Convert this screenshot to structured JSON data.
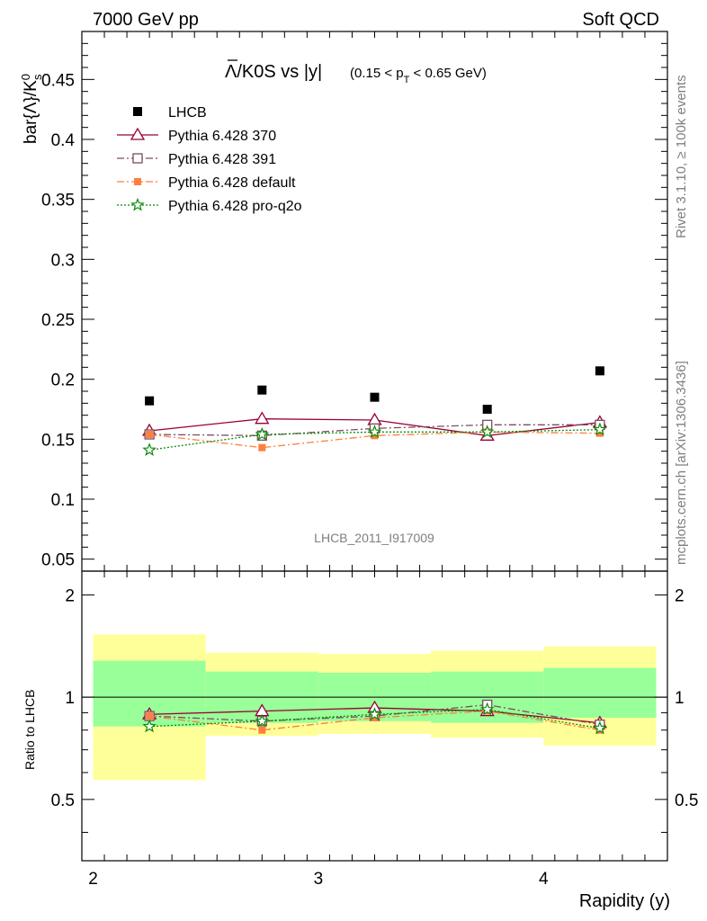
{
  "header": {
    "left": "7000 GeV pp",
    "right": "Soft QCD"
  },
  "side_labels": {
    "rivet": "Rivet 3.1.10, ≥ 100k events",
    "mcplots": "mcplots.cern.ch [arXiv:1306.3436]"
  },
  "watermark": "LHCB_2011_I917009",
  "title": {
    "main": "Λ/K0S vs |y|",
    "cut_prefix": "(0.15 < p",
    "cut_sub": "T",
    "cut_suffix": " < 0.65 GeV)"
  },
  "colors": {
    "lhcb": "#000000",
    "p370": "#990033",
    "p391": "#7a4d5e",
    "pdefault": "#ff7f3f",
    "pq2o": "#0a8c0a",
    "band_inner": "#99ff99",
    "band_outer": "#ffff99"
  },
  "chart_data": [
    {
      "type": "scatter",
      "ylabel_main": "bar{Λ}/K",
      "ylabel_sup": "0",
      "ylabel_sub": "s",
      "ylim": [
        0.04,
        0.49
      ],
      "yticks": [
        0.05,
        0.1,
        0.15,
        0.2,
        0.25,
        0.3,
        0.35,
        0.4,
        0.45
      ],
      "ytick_labels": [
        "0.05",
        "0.1",
        "0.15",
        "0.2",
        "0.25",
        "0.3",
        "0.35",
        "0.4",
        "0.45"
      ],
      "xlim": [
        1.95,
        4.55
      ],
      "x": [
        2.25,
        2.75,
        3.25,
        3.75,
        4.25
      ],
      "legend_position": "top-left",
      "series": [
        {
          "key": "lhcb",
          "name": "LHCB",
          "marker": "square",
          "values": [
            0.182,
            0.191,
            0.185,
            0.175,
            0.207
          ]
        },
        {
          "key": "p370",
          "name": "Pythia 6.428 370",
          "marker": "triangle",
          "line": "solid",
          "values": [
            0.157,
            0.167,
            0.166,
            0.153,
            0.164
          ]
        },
        {
          "key": "p391",
          "name": "Pythia 6.428 391",
          "marker": "open-square",
          "line": "dashdot",
          "values": [
            0.154,
            0.153,
            0.159,
            0.162,
            0.162
          ]
        },
        {
          "key": "pdefault",
          "name": "Pythia 6.428 default",
          "marker": "filled-square-small",
          "line": "dashdot",
          "values": [
            0.154,
            0.143,
            0.153,
            0.156,
            0.155
          ]
        },
        {
          "key": "pq2o",
          "name": "Pythia 6.428 pro-q2o",
          "marker": "star",
          "line": "dotted",
          "values": [
            0.141,
            0.154,
            0.156,
            0.156,
            0.158
          ]
        }
      ]
    },
    {
      "type": "scatter",
      "ylabel": "Ratio to LHCB",
      "xlabel": "Rapidity (y)",
      "ylim": [
        0.33,
        2.35
      ],
      "xlim": [
        1.95,
        4.55
      ],
      "xticks": [
        2,
        3,
        4
      ],
      "xtick_labels": [
        "2",
        "3",
        "4"
      ],
      "yticks": [
        0.5,
        1,
        2
      ],
      "ytick_labels": [
        "0.5",
        "1",
        "2"
      ],
      "bins": [
        [
          2.0,
          2.5
        ],
        [
          2.5,
          3.0
        ],
        [
          3.0,
          3.5
        ],
        [
          3.5,
          4.0
        ],
        [
          4.0,
          4.5
        ]
      ],
      "band_inner": [
        [
          0.82,
          1.28
        ],
        [
          0.84,
          1.19
        ],
        [
          0.85,
          1.18
        ],
        [
          0.84,
          1.19
        ],
        [
          0.87,
          1.22
        ]
      ],
      "band_outer": [
        [
          0.57,
          1.53
        ],
        [
          0.77,
          1.35
        ],
        [
          0.78,
          1.34
        ],
        [
          0.76,
          1.37
        ],
        [
          0.72,
          1.41
        ]
      ],
      "x": [
        2.25,
        2.75,
        3.25,
        3.75,
        4.25
      ],
      "series": [
        {
          "key": "p370",
          "name": "Pythia 6.428 370",
          "values": [
            0.89,
            0.91,
            0.93,
            0.91,
            0.84
          ]
        },
        {
          "key": "p391",
          "name": "Pythia 6.428 391",
          "values": [
            0.88,
            0.85,
            0.88,
            0.95,
            0.83
          ]
        },
        {
          "key": "pdefault",
          "name": "Pythia 6.428 default",
          "values": [
            0.88,
            0.8,
            0.87,
            0.91,
            0.8
          ]
        },
        {
          "key": "pq2o",
          "name": "Pythia 6.428 pro-q2o",
          "values": [
            0.82,
            0.85,
            0.89,
            0.92,
            0.81
          ]
        }
      ]
    }
  ]
}
